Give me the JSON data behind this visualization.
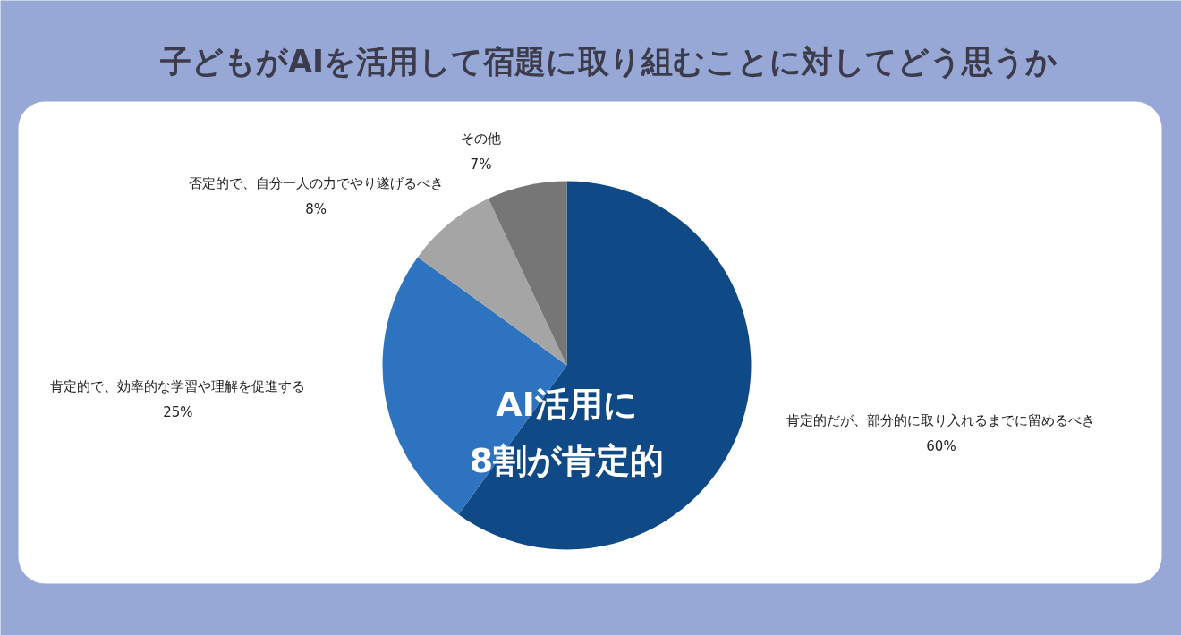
{
  "chart_data": {
    "type": "pie",
    "title": "子どもがAIを活用して宿題に取り組むことに対してどう思うか",
    "categories": [
      "肯定的だが、部分的に取り入れるまでに留めるべき",
      "肯定的で、効率的な学習や理解を促進する",
      "否定的で、自分一人の力でやり遂げるべき",
      "その他"
    ],
    "values": [
      60,
      25,
      8,
      7
    ],
    "value_labels": [
      "60%",
      "25%",
      "8%",
      "7%"
    ],
    "colors": [
      "#0f4a87",
      "#2e73bf",
      "#a5a5a5",
      "#767676"
    ],
    "annotations": [
      "AI活用に\n8割が肯定的"
    ]
  }
}
